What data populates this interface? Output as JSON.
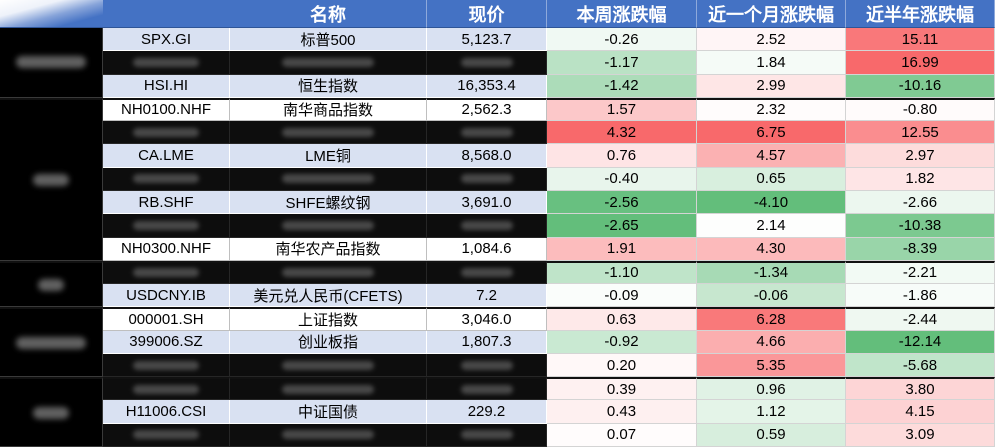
{
  "chart_data": {
    "type": "table",
    "columns": {
      "name": "名称",
      "price": "现价",
      "week": "本周涨跌幅",
      "month": "近一个月涨跌幅",
      "half_year": "近半年涨跌幅"
    },
    "color_scale": {
      "low": "#63BE7B",
      "mid": "#FFFFFF",
      "high": "#F8696B"
    },
    "groups": [
      {
        "rows": [
          {
            "code": "SPX.GI",
            "name": "标普500",
            "price": "5,123.7",
            "week": "-0.26",
            "month": "2.52",
            "half_year": "15.11"
          },
          {
            "week": "-1.17",
            "month": "1.84",
            "half_year": "16.99"
          },
          {
            "code": "HSI.HI",
            "name": "恒生指数",
            "price": "16,353.4",
            "week": "-1.42",
            "month": "2.99",
            "half_year": "-10.16"
          }
        ]
      },
      {
        "rows": [
          {
            "code": "NH0100.NHF",
            "name": "南华商品指数",
            "price": "2,562.3",
            "week": "1.57",
            "month": "2.32",
            "half_year": "-0.80"
          },
          {
            "week": "4.32",
            "month": "6.75",
            "half_year": "12.55"
          },
          {
            "code": "CA.LME",
            "name": "LME铜",
            "price": "8,568.0",
            "week": "0.76",
            "month": "4.57",
            "half_year": "2.97"
          },
          {
            "week": "-0.40",
            "month": "0.65",
            "half_year": "1.82"
          },
          {
            "code": "RB.SHF",
            "name": "SHFE螺纹钢",
            "price": "3,691.0",
            "week": "-2.56",
            "month": "-4.10",
            "half_year": "-2.66"
          },
          {
            "week": "-2.65",
            "month": "2.14",
            "half_year": "-10.38"
          },
          {
            "code": "NH0300.NHF",
            "name": "南华农产品指数",
            "price": "1,084.6",
            "week": "1.91",
            "month": "4.30",
            "half_year": "-8.39"
          }
        ]
      },
      {
        "rows": [
          {
            "week": "-1.10",
            "month": "-1.34",
            "half_year": "-2.21"
          },
          {
            "code": "USDCNY.IB",
            "name": "美元兑人民币(CFETS)",
            "price": "7.2",
            "week": "-0.09",
            "month": "-0.06",
            "half_year": "-1.86"
          }
        ]
      },
      {
        "rows": [
          {
            "code": "000001.SH",
            "name": "上证指数",
            "price": "3,046.0",
            "week": "0.63",
            "month": "6.28",
            "half_year": "-2.44"
          },
          {
            "code": "399006.SZ",
            "name": "创业板指",
            "price": "1,807.3",
            "week": "-0.92",
            "month": "4.66",
            "half_year": "-12.14"
          },
          {
            "week": "0.20",
            "month": "5.35",
            "half_year": "-5.68"
          }
        ]
      },
      {
        "rows": [
          {
            "week": "0.39",
            "month": "0.96",
            "half_year": "3.80"
          },
          {
            "code": "H11006.CSI",
            "name": "中证国债",
            "price": "229.2",
            "week": "0.43",
            "month": "1.12",
            "half_year": "4.15"
          },
          {
            "week": "0.07",
            "month": "0.59",
            "half_year": "3.09"
          }
        ]
      }
    ]
  },
  "colors": {
    "header_bg": "#4472C4",
    "band": "#D9E1F2",
    "redaction": "#0D0D0D"
  }
}
